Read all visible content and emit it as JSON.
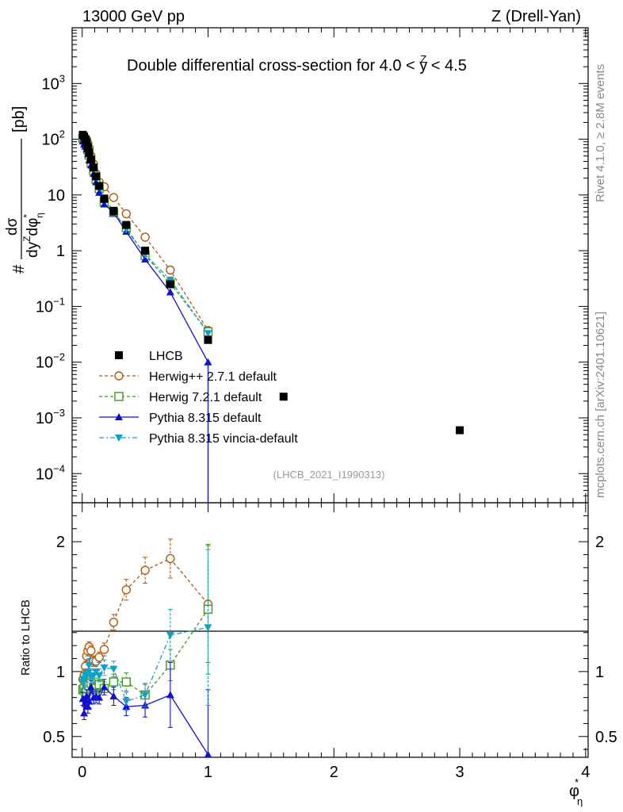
{
  "header": {
    "left": "13000 GeV pp",
    "right": "Z (Drell-Yan)"
  },
  "side_text": {
    "rivet": "Rivet 4.1.0, ≥ 2.8M events",
    "mcplots": "mcplots.cern.ch [arXiv:2401.10621]"
  },
  "chart_data": {
    "type": "scatter",
    "title": "Double differential cross-section for 4.0 < y^Z < 4.5",
    "title_parts": {
      "pre": "Double differential cross-section for 4.0 < ",
      "var": "y",
      "sup": "Z",
      "post": " < 4.5"
    },
    "analysis_id": "(LHCB_2021_I1990313)",
    "xlabel": {
      "main": "φ",
      "sup": "*",
      "sub": "η"
    },
    "ylabel": {
      "hash": "#",
      "numerator": "dσ",
      "denominator": "dy",
      "den_sup": "Z",
      "den_phi": "dφ",
      "den_phi_sup": "*",
      "den_phi_sub": "η",
      "unit": "[pb]"
    },
    "ratio_ylabel": "Ratio to LHCB",
    "xlim": [
      -0.08,
      4.02
    ],
    "ylim_log": [
      3e-05,
      10000
    ],
    "ratio_ylim": [
      0.34,
      2.3
    ],
    "x_ticks": [
      {
        "value": 0,
        "label": "0"
      },
      {
        "value": 1,
        "label": "1"
      },
      {
        "value": 2,
        "label": "2"
      },
      {
        "value": 3,
        "label": "3"
      },
      {
        "value": 4,
        "label": "4"
      }
    ],
    "y_ticks": [
      {
        "value": 0.0001,
        "base": "10",
        "exp": "−4"
      },
      {
        "value": 0.001,
        "base": "10",
        "exp": "−3"
      },
      {
        "value": 0.01,
        "base": "10",
        "exp": "−2"
      },
      {
        "value": 0.1,
        "base": "10",
        "exp": "−1"
      },
      {
        "value": 1,
        "base": "1",
        "exp": ""
      },
      {
        "value": 10,
        "base": "10",
        "exp": ""
      },
      {
        "value": 100,
        "base": "10",
        "exp": "2"
      },
      {
        "value": 1000,
        "base": "10",
        "exp": "3"
      }
    ],
    "ratio_ticks": [
      {
        "value": 0.5,
        "label": "0.5"
      },
      {
        "value": 1,
        "label": "1"
      },
      {
        "value": 2,
        "label": "2"
      }
    ],
    "data": {
      "name": "LHCB",
      "color": "#000000",
      "x": [
        0.005,
        0.015,
        0.025,
        0.035,
        0.045,
        0.055,
        0.07,
        0.09,
        0.11,
        0.135,
        0.175,
        0.25,
        0.35,
        0.5,
        0.7,
        1.0,
        1.6,
        3.0
      ],
      "y": [
        120,
        112,
        100,
        88,
        72,
        58,
        43,
        31,
        21.5,
        14.5,
        8.5,
        5.2,
        2.9,
        1.0,
        0.25,
        0.025,
        0.0024,
        0.0006
      ]
    },
    "series": [
      {
        "name": "Herwig++ 2.7.1 default",
        "color": "#b05a10",
        "marker": "circle-open",
        "dash": "4,3",
        "x": [
          0.005,
          0.015,
          0.025,
          0.035,
          0.045,
          0.055,
          0.07,
          0.09,
          0.11,
          0.135,
          0.175,
          0.25,
          0.35,
          0.5,
          0.7,
          1.0
        ],
        "y": [
          113,
          108,
          105,
          100,
          85,
          70,
          50,
          36,
          24,
          17,
          14,
          9,
          4.6,
          1.75,
          0.45,
          0.037
        ],
        "ratio": [
          0.94,
          0.97,
          1.04,
          1.12,
          1.16,
          1.19,
          1.16,
          1.08,
          1.08,
          1.11,
          1.17,
          1.38,
          1.63,
          1.78,
          1.87,
          1.52
        ],
        "ratio_err": [
          0.04,
          0.04,
          0.04,
          0.04,
          0.04,
          0.04,
          0.04,
          0.04,
          0.04,
          0.04,
          0.05,
          0.06,
          0.08,
          0.1,
          0.15,
          0.45
        ]
      },
      {
        "name": "Herwig 7.2.1 default",
        "color": "#3b9b1a",
        "marker": "square-open",
        "dash": "4,3",
        "x": [
          0.005,
          0.015,
          0.025,
          0.035,
          0.045,
          0.055,
          0.07,
          0.09,
          0.11,
          0.135,
          0.175,
          0.25,
          0.35,
          0.5,
          0.7,
          1.0
        ],
        "y": [
          104,
          98,
          90,
          80,
          65,
          52,
          38,
          27,
          19,
          13,
          7.5,
          4.8,
          2.6,
          0.82,
          0.26,
          0.035
        ],
        "ratio": [
          0.86,
          0.87,
          0.84,
          0.87,
          0.9,
          0.89,
          0.91,
          0.88,
          0.87,
          0.9,
          0.87,
          0.92,
          0.92,
          0.82,
          1.05,
          1.48
        ],
        "ratio_err": [
          0.04,
          0.04,
          0.04,
          0.04,
          0.04,
          0.04,
          0.04,
          0.04,
          0.04,
          0.04,
          0.05,
          0.06,
          0.07,
          0.08,
          0.12,
          0.5
        ]
      },
      {
        "name": "Pythia 8.315 default",
        "color": "#1010d0",
        "marker": "triangle-up",
        "dash": "",
        "x": [
          0.005,
          0.015,
          0.025,
          0.035,
          0.045,
          0.055,
          0.07,
          0.09,
          0.11,
          0.135,
          0.175,
          0.25,
          0.35,
          0.5,
          0.7,
          1.0
        ],
        "y": [
          92,
          80,
          74,
          66,
          54,
          42,
          34,
          24,
          17,
          11,
          6.8,
          4.8,
          2.2,
          0.7,
          0.18,
          0.01
        ],
        "ratio": [
          0.79,
          0.68,
          0.76,
          0.81,
          0.73,
          0.77,
          0.88,
          0.8,
          0.81,
          0.8,
          0.88,
          0.81,
          0.73,
          0.74,
          0.82,
          0.36
        ],
        "ratio_err": [
          0.05,
          0.05,
          0.05,
          0.05,
          0.05,
          0.05,
          0.05,
          0.05,
          0.05,
          0.05,
          0.06,
          0.07,
          0.07,
          0.09,
          0.25,
          0.5
        ]
      },
      {
        "name": "Pythia 8.315 vincia-default",
        "color": "#10a0c8",
        "marker": "triangle-down",
        "dash": "6,3,2,3",
        "x": [
          0.005,
          0.015,
          0.025,
          0.035,
          0.045,
          0.055,
          0.07,
          0.09,
          0.11,
          0.135,
          0.175,
          0.25,
          0.35,
          0.5,
          0.7,
          1.0
        ],
        "y": [
          108,
          100,
          90,
          78,
          72,
          55,
          43,
          30,
          21,
          14,
          9,
          5.1,
          2.4,
          0.85,
          0.3,
          0.033
        ],
        "ratio": [
          0.92,
          0.94,
          0.97,
          0.97,
          1.0,
          1.05,
          0.96,
          0.97,
          1.0,
          0.97,
          1.03,
          1.02,
          0.77,
          0.82,
          1.28,
          1.34
        ],
        "ratio_err": [
          0.05,
          0.05,
          0.05,
          0.05,
          0.05,
          0.05,
          0.05,
          0.05,
          0.05,
          0.05,
          0.06,
          0.06,
          0.07,
          0.09,
          0.2,
          0.6
        ]
      }
    ]
  }
}
